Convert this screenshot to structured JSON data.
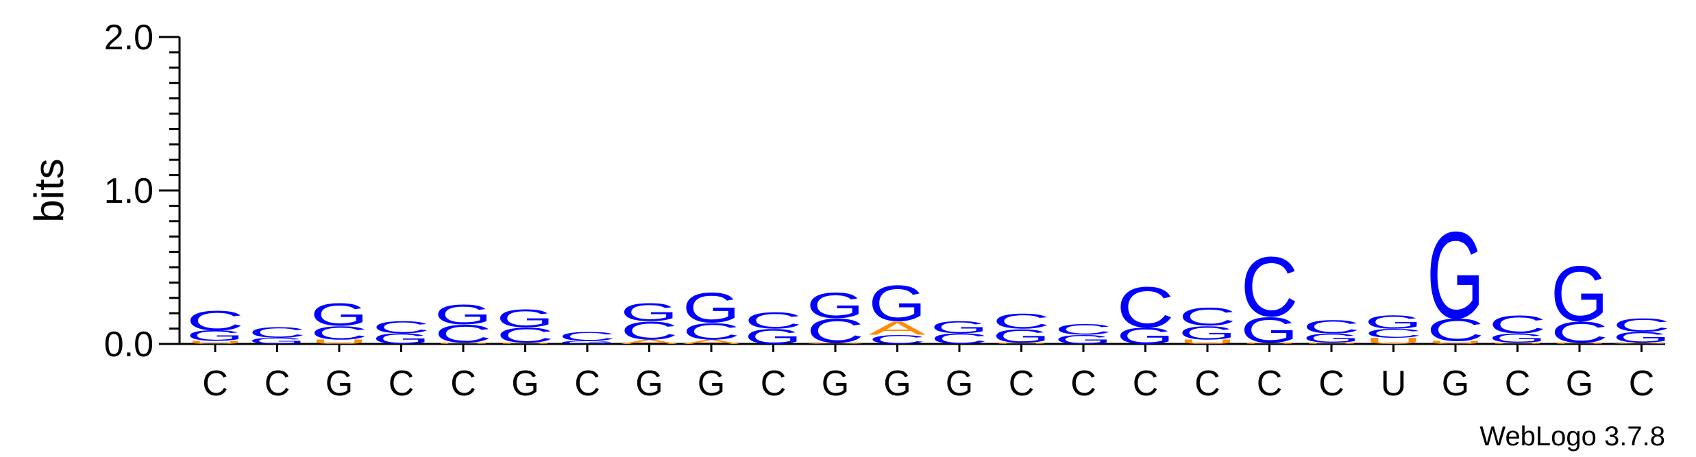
{
  "chart_data": {
    "type": "sequence-logo",
    "ylabel": "bits",
    "ylim": [
      0,
      2.0
    ],
    "yticks": [
      "0.0",
      "1.0",
      "2.0"
    ],
    "credit": "WebLogo 3.7.8",
    "colors": {
      "C": "#0000ff",
      "G": "#0000ff",
      "A": "#ff8c00",
      "U": "#ff8c00"
    },
    "positions": [
      {
        "label": "C",
        "stack": [
          {
            "base": "U",
            "bits": 0.02
          },
          {
            "base": "G",
            "bits": 0.07
          },
          {
            "base": "C",
            "bits": 0.13
          }
        ]
      },
      {
        "label": "C",
        "stack": [
          {
            "base": "G",
            "bits": 0.04
          },
          {
            "base": "C",
            "bits": 0.07
          }
        ]
      },
      {
        "label": "G",
        "stack": [
          {
            "base": "U",
            "bits": 0.03
          },
          {
            "base": "C",
            "bits": 0.09
          },
          {
            "base": "G",
            "bits": 0.15
          }
        ]
      },
      {
        "label": "C",
        "stack": [
          {
            "base": "G",
            "bits": 0.07
          },
          {
            "base": "C",
            "bits": 0.08
          }
        ]
      },
      {
        "label": "C",
        "stack": [
          {
            "base": "U",
            "bits": 0.01
          },
          {
            "base": "C",
            "bits": 0.12
          },
          {
            "base": "G",
            "bits": 0.13
          }
        ]
      },
      {
        "label": "G",
        "stack": [
          {
            "base": "U",
            "bits": 0.01
          },
          {
            "base": "C",
            "bits": 0.1
          },
          {
            "base": "G",
            "bits": 0.12
          }
        ]
      },
      {
        "label": "C",
        "stack": [
          {
            "base": "G",
            "bits": 0.02
          },
          {
            "base": "C",
            "bits": 0.06
          }
        ]
      },
      {
        "label": "G",
        "stack": [
          {
            "base": "A",
            "bits": 0.03
          },
          {
            "base": "C",
            "bits": 0.12
          },
          {
            "base": "G",
            "bits": 0.12
          }
        ]
      },
      {
        "label": "G",
        "stack": [
          {
            "base": "A",
            "bits": 0.03
          },
          {
            "base": "C",
            "bits": 0.11
          },
          {
            "base": "G",
            "bits": 0.2
          }
        ]
      },
      {
        "label": "C",
        "stack": [
          {
            "base": "G",
            "bits": 0.1
          },
          {
            "base": "C",
            "bits": 0.11
          }
        ]
      },
      {
        "label": "G",
        "stack": [
          {
            "base": "A",
            "bits": 0.01
          },
          {
            "base": "C",
            "bits": 0.16
          },
          {
            "base": "G",
            "bits": 0.17
          }
        ]
      },
      {
        "label": "G",
        "stack": [
          {
            "base": "C",
            "bits": 0.06
          },
          {
            "base": "A",
            "bits": 0.09
          },
          {
            "base": "G",
            "bits": 0.24
          }
        ]
      },
      {
        "label": "G",
        "stack": [
          {
            "base": "C",
            "bits": 0.07
          },
          {
            "base": "G",
            "bits": 0.08
          }
        ]
      },
      {
        "label": "C",
        "stack": [
          {
            "base": "U",
            "bits": 0.01
          },
          {
            "base": "G",
            "bits": 0.09
          },
          {
            "base": "C",
            "bits": 0.1
          }
        ]
      },
      {
        "label": "C",
        "stack": [
          {
            "base": "G",
            "bits": 0.06
          },
          {
            "base": "C",
            "bits": 0.07
          }
        ]
      },
      {
        "label": "C",
        "stack": [
          {
            "base": "G",
            "bits": 0.11
          },
          {
            "base": "C",
            "bits": 0.27
          }
        ]
      },
      {
        "label": "C",
        "stack": [
          {
            "base": "U",
            "bits": 0.03
          },
          {
            "base": "G",
            "bits": 0.09
          },
          {
            "base": "C",
            "bits": 0.12
          }
        ]
      },
      {
        "label": "C",
        "stack": [
          {
            "base": "U",
            "bits": 0.01
          },
          {
            "base": "G",
            "bits": 0.17
          },
          {
            "base": "C",
            "bits": 0.4
          }
        ]
      },
      {
        "label": "C",
        "stack": [
          {
            "base": "U",
            "bits": 0.01
          },
          {
            "base": "G",
            "bits": 0.06
          },
          {
            "base": "C",
            "bits": 0.09
          }
        ]
      },
      {
        "label": "U",
        "stack": [
          {
            "base": "U",
            "bits": 0.04
          },
          {
            "base": "C",
            "bits": 0.06
          },
          {
            "base": "G",
            "bits": 0.09
          }
        ]
      },
      {
        "label": "G",
        "stack": [
          {
            "base": "U",
            "bits": 0.02
          },
          {
            "base": "C",
            "bits": 0.15
          },
          {
            "base": "G",
            "bits": 0.58
          }
        ]
      },
      {
        "label": "C",
        "stack": [
          {
            "base": "U",
            "bits": 0.01
          },
          {
            "base": "G",
            "bits": 0.06
          },
          {
            "base": "C",
            "bits": 0.12
          }
        ]
      },
      {
        "label": "G",
        "stack": [
          {
            "base": "U",
            "bits": 0.01
          },
          {
            "base": "C",
            "bits": 0.14
          },
          {
            "base": "G",
            "bits": 0.37
          }
        ]
      },
      {
        "label": "C",
        "stack": [
          {
            "base": "A",
            "bits": 0.01
          },
          {
            "base": "G",
            "bits": 0.07
          },
          {
            "base": "C",
            "bits": 0.09
          }
        ]
      }
    ]
  }
}
